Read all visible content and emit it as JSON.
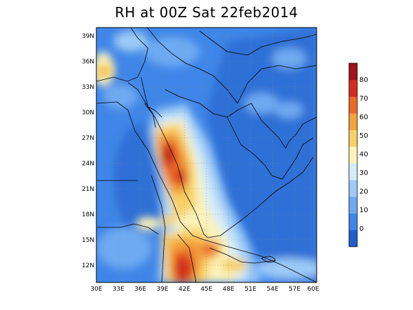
{
  "title": "RH at 00Z Sat 22feb2014",
  "map": {
    "lon_range": [
      30,
      60
    ],
    "lat_range": [
      10,
      40
    ],
    "lat_ticks": [
      "39N",
      "36N",
      "33N",
      "30N",
      "27N",
      "24N",
      "21N",
      "18N",
      "15N",
      "12N"
    ],
    "lon_ticks": [
      "30E",
      "33E",
      "36E",
      "39E",
      "42E",
      "45E",
      "48E",
      "51E",
      "54E",
      "57E",
      "60E"
    ]
  },
  "colorbar": {
    "labels": [
      "0",
      "10",
      "20",
      "30",
      "40",
      "50",
      "60",
      "70",
      "80"
    ],
    "colors": [
      "#1f5fcc",
      "#3f86e8",
      "#6eaaf2",
      "#9ccbf7",
      "#d4ecf9",
      "#fbf3b9",
      "#f8d266",
      "#f3a23c",
      "#ea6a26",
      "#d42d1f",
      "#a4121b"
    ]
  }
}
